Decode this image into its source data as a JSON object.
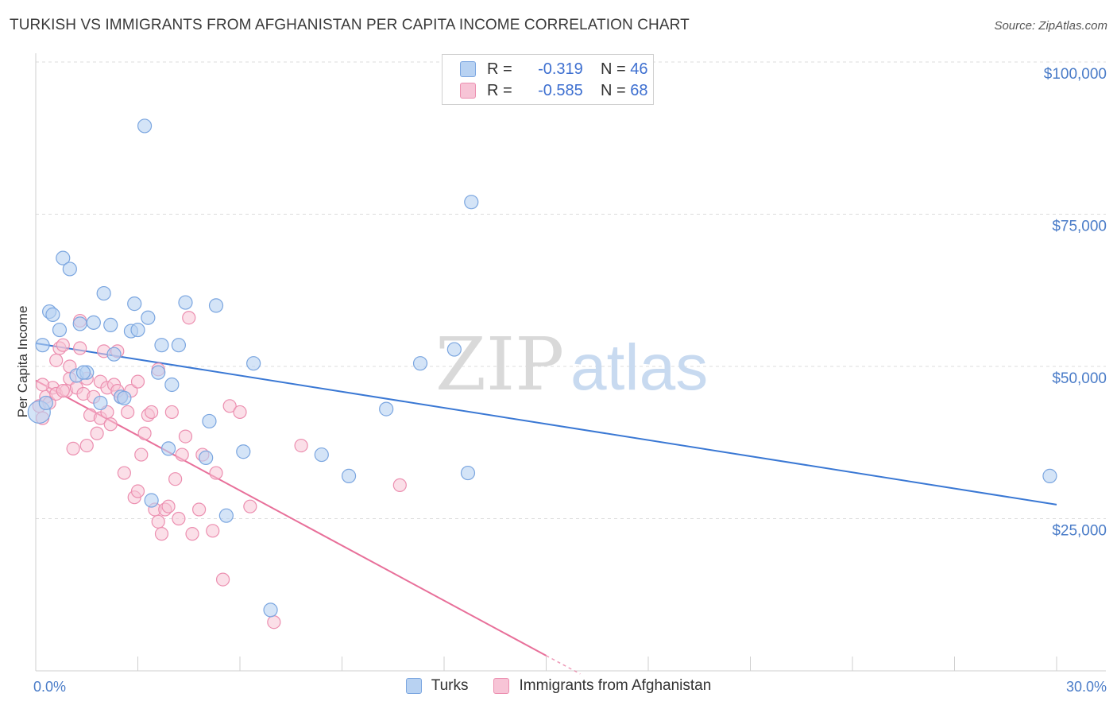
{
  "title": "TURKISH VS IMMIGRANTS FROM AFGHANISTAN PER CAPITA INCOME CORRELATION CHART",
  "source": "Source: ZipAtlas.com",
  "watermark": {
    "zip": "ZIP",
    "atlas": "atlas"
  },
  "legend_top": {
    "rows": [
      {
        "r_label": "R =",
        "r_value": "-0.319",
        "n_label": "N =",
        "n_value": "46"
      },
      {
        "r_label": "R =",
        "r_value": "-0.585",
        "n_label": "N =",
        "n_value": "68"
      }
    ]
  },
  "colors": {
    "turks_fill": "#b8d2f2",
    "turks_stroke": "#7ba6e0",
    "turks_line": "#3a78d4",
    "afg_fill": "#f7c4d6",
    "afg_stroke": "#ec8fb0",
    "afg_line": "#e8709a",
    "axis_text": "#4a7cc8",
    "grid": "#dddddd"
  },
  "chart_data": {
    "type": "scatter",
    "title": "TURKISH VS IMMIGRANTS FROM AFGHANISTAN PER CAPITA INCOME CORRELATION CHART",
    "xlabel": "",
    "ylabel": "Per Capita Income",
    "xlim": [
      0,
      30
    ],
    "ylim": [
      0,
      105000
    ],
    "x_tick_labels": {
      "min": "0.0%",
      "max": "30.0%"
    },
    "y_ticks": [
      {
        "value": 25000,
        "label": "$25,000"
      },
      {
        "value": 50000,
        "label": "$50,000"
      },
      {
        "value": 75000,
        "label": "$75,000"
      },
      {
        "value": 100000,
        "label": "$100,000"
      }
    ],
    "series": [
      {
        "name": "Turks",
        "r": -0.319,
        "n": 46,
        "trend": {
          "x0": 0,
          "y0": 53800,
          "x1": 30,
          "y1": 27300
        },
        "points": [
          [
            0.1,
            42500
          ],
          [
            0.2,
            53500
          ],
          [
            0.4,
            59000
          ],
          [
            0.5,
            58500
          ],
          [
            0.7,
            56000
          ],
          [
            0.8,
            67800
          ],
          [
            1.0,
            66000
          ],
          [
            1.2,
            48500
          ],
          [
            1.3,
            57000
          ],
          [
            1.5,
            49000
          ],
          [
            1.7,
            57200
          ],
          [
            1.9,
            44000
          ],
          [
            2.0,
            62000
          ],
          [
            2.2,
            56800
          ],
          [
            2.3,
            52000
          ],
          [
            2.5,
            45000
          ],
          [
            2.6,
            44800
          ],
          [
            2.8,
            55800
          ],
          [
            2.9,
            60300
          ],
          [
            3.0,
            56000
          ],
          [
            3.2,
            89500
          ],
          [
            3.3,
            58000
          ],
          [
            3.4,
            28000
          ],
          [
            3.6,
            49000
          ],
          [
            3.7,
            53500
          ],
          [
            3.9,
            36500
          ],
          [
            4.0,
            47000
          ],
          [
            4.2,
            53500
          ],
          [
            4.4,
            60500
          ],
          [
            5.0,
            35000
          ],
          [
            5.1,
            41000
          ],
          [
            5.3,
            60000
          ],
          [
            5.6,
            25500
          ],
          [
            6.1,
            36000
          ],
          [
            6.4,
            50500
          ],
          [
            6.9,
            10000
          ],
          [
            8.4,
            35500
          ],
          [
            9.2,
            32000
          ],
          [
            10.3,
            43000
          ],
          [
            11.3,
            50500
          ],
          [
            12.3,
            52800
          ],
          [
            12.7,
            32500
          ],
          [
            12.8,
            77000
          ],
          [
            29.8,
            32000
          ],
          [
            0.3,
            44000
          ],
          [
            1.4,
            49000
          ]
        ]
      },
      {
        "name": "Immigrants from Afghanistan",
        "r": -0.585,
        "n": 68,
        "trend": {
          "x0": 0,
          "y0": 47700,
          "x1": 15,
          "y1": 2500,
          "dash_to_x": 16,
          "dash_to_y": -500
        },
        "points": [
          [
            0.1,
            43500
          ],
          [
            0.2,
            41500
          ],
          [
            0.3,
            45000
          ],
          [
            0.4,
            44000
          ],
          [
            0.5,
            46500
          ],
          [
            0.6,
            45500
          ],
          [
            0.6,
            51000
          ],
          [
            0.7,
            53000
          ],
          [
            0.8,
            53500
          ],
          [
            0.9,
            46000
          ],
          [
            1.0,
            48000
          ],
          [
            1.0,
            50000
          ],
          [
            1.1,
            36500
          ],
          [
            1.2,
            46500
          ],
          [
            1.3,
            57500
          ],
          [
            1.3,
            53000
          ],
          [
            1.4,
            45500
          ],
          [
            1.5,
            37000
          ],
          [
            1.6,
            42000
          ],
          [
            1.7,
            45000
          ],
          [
            1.8,
            39000
          ],
          [
            1.9,
            41500
          ],
          [
            1.9,
            47500
          ],
          [
            2.0,
            52500
          ],
          [
            2.1,
            42500
          ],
          [
            2.1,
            46500
          ],
          [
            2.2,
            40500
          ],
          [
            2.3,
            47000
          ],
          [
            2.4,
            52500
          ],
          [
            2.5,
            45000
          ],
          [
            2.6,
            32500
          ],
          [
            2.7,
            42500
          ],
          [
            2.8,
            46000
          ],
          [
            2.9,
            28500
          ],
          [
            3.0,
            29500
          ],
          [
            3.0,
            47500
          ],
          [
            3.1,
            35500
          ],
          [
            3.2,
            39000
          ],
          [
            3.3,
            42000
          ],
          [
            3.4,
            42500
          ],
          [
            3.5,
            26500
          ],
          [
            3.6,
            49500
          ],
          [
            3.6,
            24500
          ],
          [
            3.7,
            22500
          ],
          [
            3.8,
            26500
          ],
          [
            3.9,
            27000
          ],
          [
            4.0,
            42500
          ],
          [
            4.1,
            31500
          ],
          [
            4.2,
            25000
          ],
          [
            4.3,
            35500
          ],
          [
            4.4,
            38500
          ],
          [
            4.5,
            58000
          ],
          [
            4.6,
            22500
          ],
          [
            4.8,
            26500
          ],
          [
            4.9,
            35500
          ],
          [
            5.2,
            23000
          ],
          [
            5.3,
            32500
          ],
          [
            5.5,
            15000
          ],
          [
            5.7,
            43500
          ],
          [
            6.0,
            42500
          ],
          [
            6.3,
            27000
          ],
          [
            7.0,
            8000
          ],
          [
            7.8,
            37000
          ],
          [
            10.7,
            30500
          ],
          [
            0.2,
            47000
          ],
          [
            1.5,
            48000
          ],
          [
            2.4,
            46000
          ],
          [
            0.8,
            46000
          ]
        ]
      }
    ],
    "legend": [
      "Turks",
      "Immigrants from Afghanistan"
    ]
  }
}
